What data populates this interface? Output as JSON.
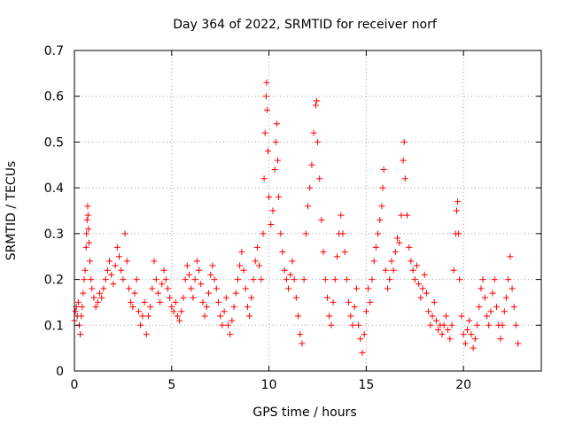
{
  "chart_data": {
    "type": "scatter",
    "title": "Day 364 of 2022, SRMTID for receiver norf",
    "xlabel": "GPS time / hours",
    "ylabel": "SRMTID / TECUs",
    "xlim": [
      0,
      24
    ],
    "ylim": [
      0,
      0.7
    ],
    "xticks": [
      "0",
      "5",
      "10",
      "15",
      "20"
    ],
    "yticks": [
      "0",
      "0.1",
      "0.2",
      "0.3",
      "0.4",
      "0.5",
      "0.6",
      "0.7"
    ],
    "grid": true,
    "marker": "plus",
    "color": "#ff0000",
    "series": [
      {
        "name": "norf",
        "points": [
          [
            0.0,
            0.11
          ],
          [
            0.05,
            0.13
          ],
          [
            0.1,
            0.14
          ],
          [
            0.15,
            0.12
          ],
          [
            0.2,
            0.15
          ],
          [
            0.25,
            0.1
          ],
          [
            0.3,
            0.08
          ],
          [
            0.35,
            0.12
          ],
          [
            0.4,
            0.14
          ],
          [
            0.45,
            0.17
          ],
          [
            0.5,
            0.2
          ],
          [
            0.55,
            0.22
          ],
          [
            0.6,
            0.27
          ],
          [
            0.62,
            0.3
          ],
          [
            0.65,
            0.33
          ],
          [
            0.68,
            0.36
          ],
          [
            0.7,
            0.34
          ],
          [
            0.72,
            0.31
          ],
          [
            0.75,
            0.28
          ],
          [
            0.8,
            0.24
          ],
          [
            0.85,
            0.2
          ],
          [
            0.9,
            0.18
          ],
          [
            1.0,
            0.16
          ],
          [
            1.1,
            0.14
          ],
          [
            1.2,
            0.15
          ],
          [
            1.3,
            0.17
          ],
          [
            1.4,
            0.16
          ],
          [
            1.5,
            0.18
          ],
          [
            1.6,
            0.2
          ],
          [
            1.7,
            0.22
          ],
          [
            1.8,
            0.24
          ],
          [
            1.9,
            0.21
          ],
          [
            2.0,
            0.19
          ],
          [
            2.1,
            0.23
          ],
          [
            2.2,
            0.27
          ],
          [
            2.3,
            0.25
          ],
          [
            2.4,
            0.22
          ],
          [
            2.5,
            0.2
          ],
          [
            2.6,
            0.3
          ],
          [
            2.7,
            0.24
          ],
          [
            2.8,
            0.18
          ],
          [
            2.9,
            0.15
          ],
          [
            3.0,
            0.14
          ],
          [
            3.1,
            0.17
          ],
          [
            3.2,
            0.2
          ],
          [
            3.3,
            0.13
          ],
          [
            3.4,
            0.1
          ],
          [
            3.5,
            0.12
          ],
          [
            3.6,
            0.15
          ],
          [
            3.7,
            0.08
          ],
          [
            3.8,
            0.12
          ],
          [
            3.9,
            0.14
          ],
          [
            4.0,
            0.18
          ],
          [
            4.1,
            0.24
          ],
          [
            4.2,
            0.2
          ],
          [
            4.3,
            0.17
          ],
          [
            4.4,
            0.15
          ],
          [
            4.5,
            0.19
          ],
          [
            4.6,
            0.22
          ],
          [
            4.7,
            0.2
          ],
          [
            4.8,
            0.18
          ],
          [
            4.9,
            0.16
          ],
          [
            5.0,
            0.14
          ],
          [
            5.1,
            0.13
          ],
          [
            5.2,
            0.15
          ],
          [
            5.3,
            0.12
          ],
          [
            5.4,
            0.11
          ],
          [
            5.5,
            0.13
          ],
          [
            5.6,
            0.16
          ],
          [
            5.7,
            0.2
          ],
          [
            5.8,
            0.23
          ],
          [
            5.9,
            0.21
          ],
          [
            6.0,
            0.18
          ],
          [
            6.1,
            0.16
          ],
          [
            6.2,
            0.2
          ],
          [
            6.3,
            0.24
          ],
          [
            6.4,
            0.22
          ],
          [
            6.5,
            0.19
          ],
          [
            6.6,
            0.15
          ],
          [
            6.7,
            0.12
          ],
          [
            6.8,
            0.14
          ],
          [
            6.9,
            0.17
          ],
          [
            7.0,
            0.21
          ],
          [
            7.1,
            0.23
          ],
          [
            7.2,
            0.2
          ],
          [
            7.3,
            0.18
          ],
          [
            7.4,
            0.15
          ],
          [
            7.5,
            0.12
          ],
          [
            7.6,
            0.1
          ],
          [
            7.7,
            0.13
          ],
          [
            7.8,
            0.16
          ],
          [
            7.9,
            0.1
          ],
          [
            8.0,
            0.08
          ],
          [
            8.1,
            0.11
          ],
          [
            8.2,
            0.14
          ],
          [
            8.3,
            0.17
          ],
          [
            8.4,
            0.2
          ],
          [
            8.5,
            0.23
          ],
          [
            8.6,
            0.26
          ],
          [
            8.7,
            0.22
          ],
          [
            8.8,
            0.18
          ],
          [
            8.9,
            0.14
          ],
          [
            9.0,
            0.12
          ],
          [
            9.1,
            0.16
          ],
          [
            9.2,
            0.2
          ],
          [
            9.3,
            0.24
          ],
          [
            9.4,
            0.27
          ],
          [
            9.5,
            0.23
          ],
          [
            9.6,
            0.2
          ],
          [
            9.7,
            0.3
          ],
          [
            9.75,
            0.42
          ],
          [
            9.8,
            0.52
          ],
          [
            9.85,
            0.6
          ],
          [
            9.88,
            0.63
          ],
          [
            9.9,
            0.57
          ],
          [
            9.95,
            0.48
          ],
          [
            10.0,
            0.38
          ],
          [
            10.1,
            0.32
          ],
          [
            10.2,
            0.35
          ],
          [
            10.3,
            0.44
          ],
          [
            10.35,
            0.5
          ],
          [
            10.4,
            0.54
          ],
          [
            10.45,
            0.46
          ],
          [
            10.5,
            0.38
          ],
          [
            10.6,
            0.3
          ],
          [
            10.7,
            0.26
          ],
          [
            10.8,
            0.22
          ],
          [
            10.9,
            0.2
          ],
          [
            11.0,
            0.18
          ],
          [
            11.1,
            0.21
          ],
          [
            11.2,
            0.24
          ],
          [
            11.3,
            0.2
          ],
          [
            11.4,
            0.16
          ],
          [
            11.5,
            0.12
          ],
          [
            11.6,
            0.08
          ],
          [
            11.7,
            0.06
          ],
          [
            11.8,
            0.2
          ],
          [
            11.9,
            0.3
          ],
          [
            12.0,
            0.36
          ],
          [
            12.1,
            0.4
          ],
          [
            12.2,
            0.45
          ],
          [
            12.3,
            0.52
          ],
          [
            12.4,
            0.58
          ],
          [
            12.45,
            0.59
          ],
          [
            12.5,
            0.5
          ],
          [
            12.6,
            0.42
          ],
          [
            12.7,
            0.33
          ],
          [
            12.8,
            0.26
          ],
          [
            12.9,
            0.2
          ],
          [
            13.0,
            0.16
          ],
          [
            13.1,
            0.12
          ],
          [
            13.2,
            0.1
          ],
          [
            13.3,
            0.15
          ],
          [
            13.4,
            0.2
          ],
          [
            13.5,
            0.25
          ],
          [
            13.6,
            0.3
          ],
          [
            13.7,
            0.34
          ],
          [
            13.8,
            0.3
          ],
          [
            13.9,
            0.26
          ],
          [
            14.0,
            0.2
          ],
          [
            14.1,
            0.15
          ],
          [
            14.2,
            0.12
          ],
          [
            14.3,
            0.1
          ],
          [
            14.4,
            0.14
          ],
          [
            14.5,
            0.18
          ],
          [
            14.6,
            0.1
          ],
          [
            14.7,
            0.07
          ],
          [
            14.8,
            0.04
          ],
          [
            14.9,
            0.08
          ],
          [
            15.0,
            0.13
          ],
          [
            15.1,
            0.18
          ],
          [
            15.2,
            0.15
          ],
          [
            15.3,
            0.2
          ],
          [
            15.4,
            0.24
          ],
          [
            15.5,
            0.27
          ],
          [
            15.6,
            0.3
          ],
          [
            15.7,
            0.33
          ],
          [
            15.8,
            0.36
          ],
          [
            15.85,
            0.4
          ],
          [
            15.9,
            0.44
          ],
          [
            16.0,
            0.22
          ],
          [
            16.1,
            0.18
          ],
          [
            16.2,
            0.2
          ],
          [
            16.3,
            0.24
          ],
          [
            16.4,
            0.22
          ],
          [
            16.5,
            0.26
          ],
          [
            16.6,
            0.29
          ],
          [
            16.7,
            0.28
          ],
          [
            16.8,
            0.34
          ],
          [
            16.9,
            0.46
          ],
          [
            16.95,
            0.5
          ],
          [
            17.0,
            0.42
          ],
          [
            17.1,
            0.34
          ],
          [
            17.2,
            0.27
          ],
          [
            17.3,
            0.24
          ],
          [
            17.4,
            0.22
          ],
          [
            17.5,
            0.2
          ],
          [
            17.6,
            0.23
          ],
          [
            17.7,
            0.19
          ],
          [
            17.8,
            0.16
          ],
          [
            17.9,
            0.18
          ],
          [
            18.0,
            0.21
          ],
          [
            18.1,
            0.17
          ],
          [
            18.2,
            0.13
          ],
          [
            18.3,
            0.1
          ],
          [
            18.4,
            0.12
          ],
          [
            18.5,
            0.15
          ],
          [
            18.6,
            0.11
          ],
          [
            18.7,
            0.09
          ],
          [
            18.8,
            0.1
          ],
          [
            18.9,
            0.08
          ],
          [
            19.0,
            0.1
          ],
          [
            19.1,
            0.12
          ],
          [
            19.2,
            0.09
          ],
          [
            19.3,
            0.07
          ],
          [
            19.4,
            0.1
          ],
          [
            19.5,
            0.22
          ],
          [
            19.6,
            0.3
          ],
          [
            19.65,
            0.35
          ],
          [
            19.7,
            0.37
          ],
          [
            19.75,
            0.3
          ],
          [
            19.8,
            0.2
          ],
          [
            19.9,
            0.12
          ],
          [
            20.0,
            0.08
          ],
          [
            20.1,
            0.06
          ],
          [
            20.2,
            0.09
          ],
          [
            20.3,
            0.11
          ],
          [
            20.4,
            0.08
          ],
          [
            20.5,
            0.05
          ],
          [
            20.6,
            0.07
          ],
          [
            20.7,
            0.1
          ],
          [
            20.8,
            0.14
          ],
          [
            20.9,
            0.18
          ],
          [
            21.0,
            0.2
          ],
          [
            21.1,
            0.16
          ],
          [
            21.2,
            0.12
          ],
          [
            21.3,
            0.1
          ],
          [
            21.4,
            0.13
          ],
          [
            21.5,
            0.17
          ],
          [
            21.6,
            0.2
          ],
          [
            21.7,
            0.14
          ],
          [
            21.8,
            0.1
          ],
          [
            21.9,
            0.07
          ],
          [
            22.0,
            0.1
          ],
          [
            22.1,
            0.13
          ],
          [
            22.2,
            0.16
          ],
          [
            22.3,
            0.2
          ],
          [
            22.4,
            0.25
          ],
          [
            22.5,
            0.18
          ],
          [
            22.6,
            0.14
          ],
          [
            22.7,
            0.1
          ],
          [
            22.8,
            0.06
          ]
        ]
      }
    ]
  }
}
